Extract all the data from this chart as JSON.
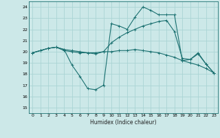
{
  "xlabel": "Humidex (Indice chaleur)",
  "bg_color": "#cce8e8",
  "grid_color": "#aad4d4",
  "line_color": "#1a7070",
  "xlim": [
    -0.5,
    23.5
  ],
  "ylim": [
    14.5,
    24.5
  ],
  "xticks": [
    0,
    1,
    2,
    3,
    4,
    5,
    6,
    7,
    8,
    9,
    10,
    11,
    12,
    13,
    14,
    15,
    16,
    17,
    18,
    19,
    20,
    21,
    22,
    23
  ],
  "yticks": [
    15,
    16,
    17,
    18,
    19,
    20,
    21,
    22,
    23,
    24
  ],
  "line1_x": [
    0,
    1,
    2,
    3,
    4,
    5,
    6,
    7,
    8,
    9,
    10,
    11,
    12,
    13,
    14,
    15,
    16,
    17,
    18,
    19,
    20,
    21,
    22,
    23
  ],
  "line1_y": [
    19.9,
    20.1,
    20.3,
    20.4,
    20.1,
    20.0,
    19.9,
    19.9,
    19.9,
    20.0,
    20.0,
    20.1,
    20.1,
    20.2,
    20.1,
    20.0,
    19.9,
    19.7,
    19.5,
    19.2,
    19.0,
    18.8,
    18.5,
    18.1
  ],
  "line2_x": [
    0,
    1,
    2,
    3,
    4,
    5,
    6,
    7,
    8,
    9,
    10,
    11,
    12,
    13,
    14,
    15,
    16,
    17,
    18,
    19,
    20,
    21,
    22,
    23
  ],
  "line2_y": [
    19.9,
    20.1,
    20.3,
    20.4,
    20.2,
    20.1,
    20.0,
    19.9,
    19.8,
    20.0,
    20.8,
    21.3,
    21.7,
    22.0,
    22.3,
    22.5,
    22.7,
    22.8,
    21.8,
    19.4,
    19.3,
    19.8,
    18.9,
    18.1
  ],
  "line3_x": [
    0,
    1,
    2,
    3,
    4,
    5,
    6,
    7,
    8,
    9,
    10,
    11,
    12,
    13,
    14,
    15,
    16,
    17,
    18,
    19,
    20,
    21,
    22,
    23
  ],
  "line3_y": [
    19.9,
    20.1,
    20.3,
    20.4,
    20.2,
    18.8,
    17.8,
    16.7,
    16.6,
    17.0,
    22.5,
    22.3,
    22.0,
    23.1,
    24.0,
    23.7,
    23.3,
    23.3,
    23.3,
    19.2,
    19.3,
    19.9,
    18.9,
    18.1
  ]
}
